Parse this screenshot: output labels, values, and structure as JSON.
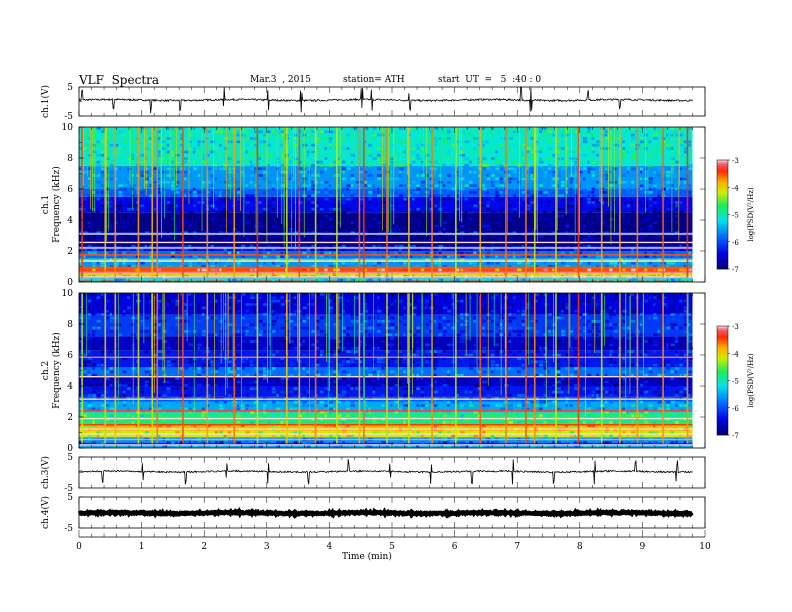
{
  "header": {
    "title": "VLF  Spectra",
    "date": "Mar.3  , 2015",
    "station": "station= ATH",
    "start": "start  UT  =   5  :40 : 0"
  },
  "chart_data": [
    {
      "type": "line",
      "name": "ch1-waveform",
      "ylabel": "ch.1(V)",
      "ylim": [
        -5,
        5
      ],
      "ytick_labels": [
        "5",
        "-5"
      ],
      "xlim": [
        0,
        10
      ],
      "data_extent": [
        0,
        9.8
      ],
      "baseline": 0.5,
      "noise_amplitude": 0.3,
      "spike_times_min": [
        0.05,
        0.55,
        1.15,
        1.62,
        2.31,
        3.02,
        3.55,
        4.52,
        4.68,
        5.28,
        7.06,
        7.22,
        8.13,
        8.64
      ]
    },
    {
      "type": "heatmap",
      "name": "ch1-spectrogram",
      "ylabel": "Frequency  (kHz)",
      "channel_label": "ch.1",
      "ylim": [
        0,
        10
      ],
      "ytick_labels": [
        "0",
        "2",
        "4",
        "6",
        "8",
        "10"
      ],
      "xlim": [
        0,
        10
      ],
      "data_extent": [
        0,
        9.8
      ],
      "colorbar": {
        "label": "log(PSD(V²/Hz)",
        "range": [
          -7,
          -3
        ],
        "tick_labels": [
          "-3",
          "-4",
          "-5",
          "-6",
          "-7"
        ]
      },
      "bands": [
        {
          "f0": 0.0,
          "f1": 0.1,
          "level": -3.4
        },
        {
          "f0": 0.1,
          "f1": 0.25,
          "level": -5.2
        },
        {
          "f0": 0.25,
          "f1": 0.4,
          "level": -3.3
        },
        {
          "f0": 0.4,
          "f1": 0.6,
          "level": -4.1
        },
        {
          "f0": 0.6,
          "f1": 0.9,
          "level": -3.5
        },
        {
          "f0": 0.9,
          "f1": 1.3,
          "level": -5.6
        },
        {
          "f0": 1.3,
          "f1": 1.5,
          "level": -4.6
        },
        {
          "f0": 1.5,
          "f1": 2.0,
          "level": -5.8
        },
        {
          "f0": 2.0,
          "f1": 2.3,
          "level": -6.3
        },
        {
          "f0": 2.3,
          "f1": 3.0,
          "level": -6.9
        },
        {
          "f0": 3.0,
          "f1": 3.2,
          "level": -6.2
        },
        {
          "f0": 3.2,
          "f1": 4.5,
          "level": -6.9
        },
        {
          "f0": 4.5,
          "f1": 5.5,
          "level": -6.4
        },
        {
          "f0": 5.5,
          "f1": 6.0,
          "level": -5.9
        },
        {
          "f0": 6.0,
          "f1": 7.5,
          "level": -5.6
        },
        {
          "f0": 7.5,
          "f1": 10.0,
          "level": -5.1
        }
      ],
      "lines_khz": [
        0.33,
        0.62,
        0.95,
        1.35,
        1.75,
        2.2,
        2.55,
        3.1
      ],
      "burst_times_min": [
        0.05,
        0.42,
        0.58,
        0.95,
        1.17,
        1.25,
        1.66,
        2.05,
        2.48,
        2.85,
        3.32,
        3.52,
        3.78,
        4.12,
        4.48,
        4.55,
        4.92,
        5.27,
        5.64,
        6.02,
        6.41,
        6.82,
        7.14,
        7.28,
        7.62,
        7.98,
        8.35,
        8.64,
        8.92,
        9.33,
        9.72
      ]
    },
    {
      "type": "heatmap",
      "name": "ch2-spectrogram",
      "ylabel": "Frequency  (kHz)",
      "channel_label": "ch.2",
      "ylim": [
        0,
        10
      ],
      "ytick_labels": [
        "0",
        "2",
        "4",
        "6",
        "8",
        "10"
      ],
      "xlim": [
        0,
        10
      ],
      "data_extent": [
        0,
        9.8
      ],
      "colorbar": {
        "label": "log(PSD(V²/Hz)",
        "range": [
          -7,
          -3
        ],
        "tick_labels": [
          "-3",
          "-4",
          "-5",
          "-6",
          "-7"
        ]
      },
      "bands": [
        {
          "f0": 0.0,
          "f1": 0.15,
          "level": -5.5
        },
        {
          "f0": 0.15,
          "f1": 0.35,
          "level": -6.2
        },
        {
          "f0": 0.35,
          "f1": 0.7,
          "level": -5.6
        },
        {
          "f0": 0.7,
          "f1": 1.1,
          "level": -4.2
        },
        {
          "f0": 1.1,
          "f1": 1.5,
          "level": -3.9
        },
        {
          "f0": 1.5,
          "f1": 2.3,
          "level": -4.8
        },
        {
          "f0": 2.3,
          "f1": 3.0,
          "level": -5.5
        },
        {
          "f0": 3.0,
          "f1": 3.3,
          "level": -5.9
        },
        {
          "f0": 3.3,
          "f1": 4.0,
          "level": -6.3
        },
        {
          "f0": 4.0,
          "f1": 4.6,
          "level": -6.6
        },
        {
          "f0": 4.6,
          "f1": 5.2,
          "level": -5.8
        },
        {
          "f0": 5.2,
          "f1": 6.3,
          "level": -6.3
        },
        {
          "f0": 6.3,
          "f1": 7.2,
          "level": -6.6
        },
        {
          "f0": 7.2,
          "f1": 8.6,
          "level": -6.1
        },
        {
          "f0": 8.6,
          "f1": 10.0,
          "level": -6.5
        }
      ],
      "lines_khz": [
        0.2,
        0.55,
        0.9,
        1.22,
        1.5,
        1.9,
        2.4,
        3.15,
        4.6,
        5.85
      ],
      "burst_times_min": [
        0.05,
        0.42,
        0.58,
        0.95,
        1.17,
        1.25,
        1.66,
        2.05,
        2.48,
        2.85,
        3.32,
        3.52,
        3.78,
        4.12,
        4.48,
        4.55,
        4.92,
        5.27,
        5.64,
        6.02,
        6.41,
        6.82,
        7.14,
        7.28,
        7.62,
        7.98,
        8.35,
        8.64,
        8.92,
        9.33,
        9.72
      ]
    },
    {
      "type": "line",
      "name": "ch3-waveform",
      "ylabel": "ch.3(V)",
      "ylim": [
        -5,
        5
      ],
      "ytick_labels": [
        "5",
        "-5"
      ],
      "xlim": [
        0,
        10
      ],
      "data_extent": [
        0,
        9.8
      ],
      "baseline": 0.3,
      "noise_amplitude": 0.25,
      "spike_times_min": [
        0.38,
        1.02,
        1.7,
        2.36,
        3.02,
        3.66,
        4.31,
        4.97,
        5.62,
        6.28,
        6.93,
        7.58,
        8.24,
        8.89,
        9.55
      ]
    },
    {
      "type": "line",
      "name": "ch4-waveform",
      "ylabel": "ch.4(V)",
      "ylim": [
        -5,
        5
      ],
      "ytick_labels": [
        "5",
        "-5"
      ],
      "xlim": [
        0,
        10
      ],
      "data_extent": [
        0,
        9.8
      ],
      "baseline": -0.2,
      "noise_amplitude": 0.25,
      "spike_times_min": []
    }
  ],
  "x_axis": {
    "label": "Time  (min)",
    "tick_labels": [
      "0",
      "1",
      "2",
      "3",
      "4",
      "5",
      "6",
      "7",
      "8",
      "9",
      "10"
    ]
  }
}
